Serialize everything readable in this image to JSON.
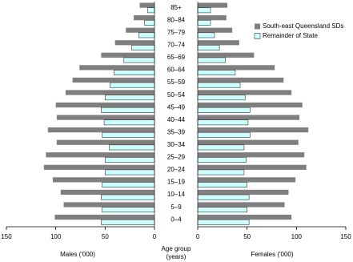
{
  "chart_data": {
    "type": "population-pyramid",
    "categories": [
      "85+",
      "80–84",
      "75–79",
      "70–74",
      "65–69",
      "60–64",
      "55–59",
      "50–54",
      "45–49",
      "40–44",
      "35–39",
      "30–34",
      "25–29",
      "20–24",
      "15–19",
      "10–14",
      "5–9",
      "0–4"
    ],
    "series": [
      {
        "name": "South-east Queensland SDs",
        "color": "#7f7f7f",
        "males": [
          15,
          21,
          29,
          40,
          54,
          76,
          83,
          90,
          100,
          99,
          108,
          99,
          110,
          112,
          103,
          95,
          92,
          101
        ],
        "females": [
          30,
          29,
          35,
          42,
          57,
          78,
          87,
          95,
          106,
          103,
          112,
          102,
          108,
          110,
          99,
          92,
          88,
          95
        ]
      },
      {
        "name": "Remainder of State",
        "color": "#ccffff",
        "males": [
          7,
          10,
          16,
          23,
          31,
          41,
          45,
          50,
          54,
          51,
          53,
          46,
          50,
          50,
          53,
          54,
          53,
          54
        ],
        "females": [
          13,
          13,
          17,
          22,
          28,
          38,
          43,
          48,
          53,
          51,
          53,
          47,
          49,
          47,
          50,
          52,
          50,
          52
        ]
      }
    ],
    "xlim": [
      0,
      150
    ],
    "xticks": [
      0,
      50,
      100,
      150
    ],
    "males_label": "Males ('000)",
    "females_label": "Females ('000)",
    "center_label": [
      "Age group",
      "(years)"
    ]
  }
}
